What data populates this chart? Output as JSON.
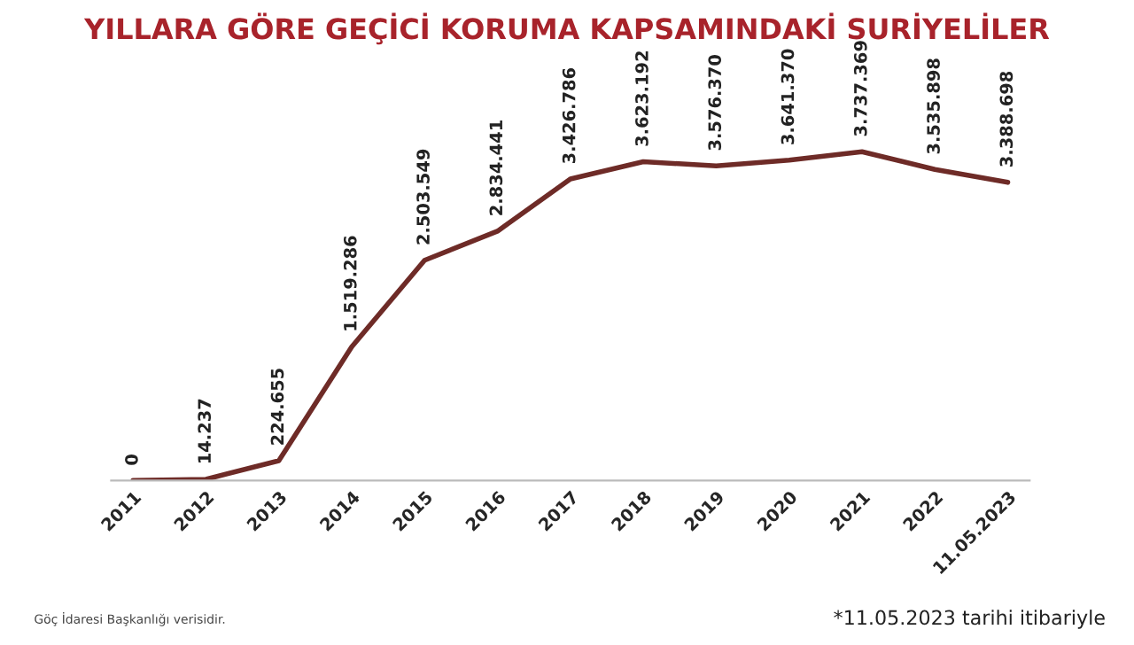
{
  "chart_data": {
    "type": "line",
    "title": "YILLARA GÖRE GEÇİCİ KORUMA KAPSAMINDAKİ SURİYELİLER",
    "categories": [
      "2011",
      "2012",
      "2013",
      "2014",
      "2015",
      "2016",
      "2017",
      "2018",
      "2019",
      "2020",
      "2021",
      "2022",
      "11.05.2023"
    ],
    "series": [
      {
        "color": "#6e2b27",
        "values": [
          0,
          14237,
          224655,
          1519286,
          2503549,
          2834441,
          3426786,
          3623192,
          3576370,
          3641370,
          3737369,
          3535898,
          3388698
        ],
        "value_labels": [
          "0",
          "14.237",
          "224.655",
          "1.519.286",
          "2.503.549",
          "2.834.441",
          "3.426.786",
          "3.623.192",
          "3.576.370",
          "3.641.370",
          "3.737.369",
          "3.535.898",
          "3.388.698"
        ]
      }
    ],
    "annotations": [
      "Göç İdaresi Başkanlığı verisidir.",
      "*11.05.2023 tarihi itibariyle"
    ],
    "marker": "none",
    "line_style": "solid",
    "grid": false,
    "legend": false
  }
}
